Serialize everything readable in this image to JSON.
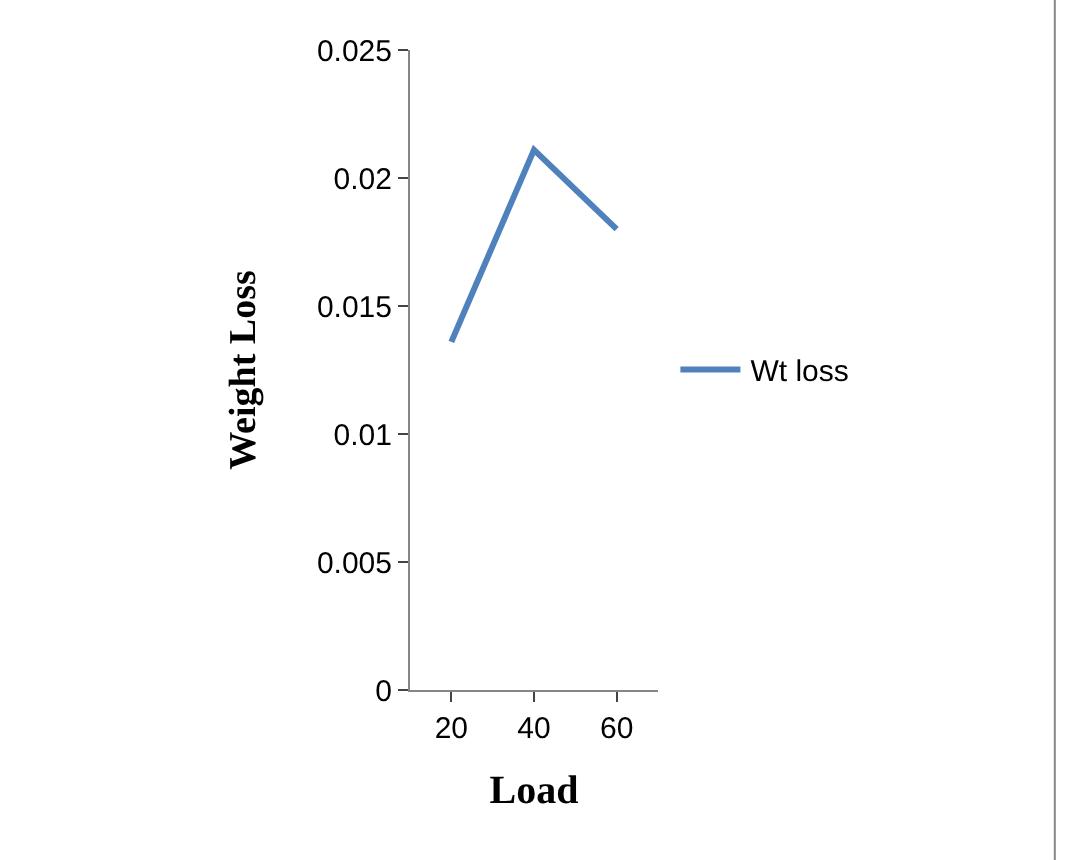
{
  "chart_data": {
    "type": "line",
    "xlabel": "Load",
    "ylabel": "Weight Loss",
    "categories": [
      "20",
      "40",
      "60"
    ],
    "series": [
      {
        "name": "Wt loss",
        "color": "#4f81bd",
        "values": [
          0.0136,
          0.0211,
          0.018
        ]
      }
    ],
    "ylim": [
      0,
      0.025
    ],
    "yticks": [
      0,
      0.005,
      0.01,
      0.015,
      0.02,
      0.025
    ],
    "grid": false,
    "legend": "right",
    "marker": "none",
    "line_style": "solid"
  }
}
